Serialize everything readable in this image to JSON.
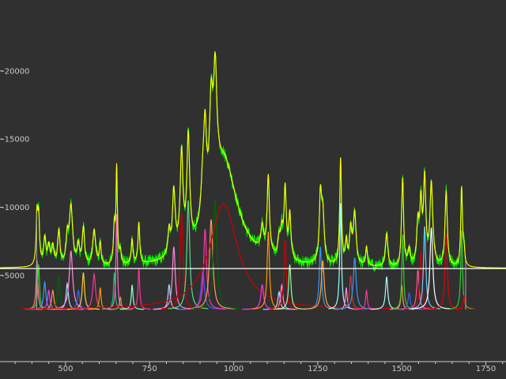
{
  "chart_data": {
    "type": "line",
    "title": "",
    "xlabel": "",
    "ylabel": "",
    "xlim": [
      305,
      1810
    ],
    "ylim": [
      -2600,
      25200
    ],
    "grid": false,
    "legend": "none",
    "x_ticks": [
      {
        "value": 500,
        "label": "500"
      },
      {
        "value": 750,
        "label": "750"
      },
      {
        "value": 1000,
        "label": "1000"
      },
      {
        "value": 1250,
        "label": "1250"
      },
      {
        "value": 1500,
        "label": "1500"
      },
      {
        "value": 1750,
        "label": "1750"
      }
    ],
    "y_ticks": [
      {
        "value": 5000,
        "label": "-5000"
      },
      {
        "value": 10000,
        "label": "-10000"
      },
      {
        "value": 15000,
        "label": "-15000"
      },
      {
        "value": 20000,
        "label": "-20000"
      }
    ],
    "baseline_level": 2500,
    "fit_offset": 5500,
    "data_range": [
      414,
      1690
    ],
    "series": [
      {
        "role": "measured",
        "color": "#00ff00",
        "noise": 350
      },
      {
        "role": "fit",
        "color": "#ffff00"
      },
      {
        "role": "offset",
        "color": "#ffffff",
        "value": 5500
      }
    ],
    "components": [
      {
        "x0": 415,
        "h": 3600,
        "w": 3,
        "color": "#ff7f7f"
      },
      {
        "x0": 420,
        "h": 3300,
        "w": 3,
        "color": "#33cc33"
      },
      {
        "x0": 438,
        "h": 2000,
        "w": 4,
        "color": "#3399ff"
      },
      {
        "x0": 450,
        "h": 1400,
        "w": 4,
        "color": "#ff33ff"
      },
      {
        "x0": 462,
        "h": 1400,
        "w": 4,
        "color": "#ff9933"
      },
      {
        "x0": 480,
        "h": 2500,
        "w": 4,
        "color": "#006600"
      },
      {
        "x0": 505,
        "h": 1900,
        "w": 4,
        "color": "#aaddff"
      },
      {
        "x0": 516,
        "h": 4300,
        "w": 6,
        "color": "#ff88dd"
      },
      {
        "x0": 538,
        "h": 1400,
        "w": 4,
        "color": "#3366ff"
      },
      {
        "x0": 553,
        "h": 2700,
        "w": 4,
        "color": "#ffcc33"
      },
      {
        "x0": 585,
        "h": 2600,
        "w": 5,
        "color": "#ff3399"
      },
      {
        "x0": 603,
        "h": 1600,
        "w": 3,
        "color": "#ff9900"
      },
      {
        "x0": 645,
        "h": 2700,
        "w": 3,
        "color": "#00cc66"
      },
      {
        "x0": 652,
        "h": 7000,
        "w": 2.5,
        "color": "#ff66cc"
      },
      {
        "x0": 663,
        "h": 900,
        "w": 3,
        "color": "#cc9966"
      },
      {
        "x0": 698,
        "h": 1800,
        "w": 3,
        "color": "#99ffcc"
      },
      {
        "x0": 718,
        "h": 3000,
        "w": 3,
        "color": "#ff3399"
      },
      {
        "x0": 808,
        "h": 1800,
        "w": 4,
        "color": "#aaddff"
      },
      {
        "x0": 822,
        "h": 4600,
        "w": 5,
        "color": "#ff88dd"
      },
      {
        "x0": 845,
        "h": 7100,
        "w": 5,
        "color": "#cc0000"
      },
      {
        "x0": 865,
        "h": 8000,
        "w": 5,
        "color": "#55dd88"
      },
      {
        "x0": 908,
        "h": 2700,
        "w": 6,
        "color": "#5555ff"
      },
      {
        "x0": 915,
        "h": 5900,
        "w": 5,
        "color": "#ff33aa"
      },
      {
        "x0": 933,
        "h": 6600,
        "w": 6,
        "color": "#ff9966"
      },
      {
        "x0": 945,
        "h": 8000,
        "w": 6,
        "color": "#006600"
      },
      {
        "x0": 970,
        "h": 7800,
        "w": 50,
        "color": "#cc0000"
      },
      {
        "x0": 1085,
        "h": 1800,
        "w": 5,
        "color": "#ff33ff"
      },
      {
        "x0": 1103,
        "h": 5700,
        "w": 4,
        "color": "#ff9900"
      },
      {
        "x0": 1135,
        "h": 1300,
        "w": 4,
        "color": "#aaddff"
      },
      {
        "x0": 1143,
        "h": 1800,
        "w": 4,
        "color": "#ff88dd"
      },
      {
        "x0": 1153,
        "h": 5100,
        "w": 4,
        "color": "#cc0000"
      },
      {
        "x0": 1167,
        "h": 3300,
        "w": 4,
        "color": "#99ff99"
      },
      {
        "x0": 1258,
        "h": 4600,
        "w": 4,
        "color": "#3399ff"
      },
      {
        "x0": 1265,
        "h": 3600,
        "w": 5,
        "color": "#ffaa33"
      },
      {
        "x0": 1318,
        "h": 7800,
        "w": 3,
        "color": "#99ffff"
      },
      {
        "x0": 1335,
        "h": 1600,
        "w": 3,
        "color": "#ff88dd"
      },
      {
        "x0": 1348,
        "h": 2500,
        "w": 4,
        "color": "#cc3333"
      },
      {
        "x0": 1360,
        "h": 3800,
        "w": 5,
        "color": "#3399ff"
      },
      {
        "x0": 1395,
        "h": 1400,
        "w": 3,
        "color": "#ff3399"
      },
      {
        "x0": 1455,
        "h": 2400,
        "w": 4,
        "color": "#aaffff"
      },
      {
        "x0": 1500,
        "h": 1800,
        "w": 3,
        "color": "#ff9933"
      },
      {
        "x0": 1503,
        "h": 5500,
        "w": 3,
        "color": "#33cc33"
      },
      {
        "x0": 1522,
        "h": 1200,
        "w": 4,
        "color": "#3366ff"
      },
      {
        "x0": 1548,
        "h": 2900,
        "w": 4,
        "color": "#ff5599"
      },
      {
        "x0": 1557,
        "h": 4300,
        "w": 4,
        "color": "#cc0000"
      },
      {
        "x0": 1568,
        "h": 6100,
        "w": 4,
        "color": "#66ccff"
      },
      {
        "x0": 1588,
        "h": 6000,
        "w": 5,
        "color": "#ffffff"
      },
      {
        "x0": 1632,
        "h": 5500,
        "w": 4,
        "color": "#dd0000"
      },
      {
        "x0": 1678,
        "h": 5800,
        "w": 3,
        "color": "#33cc33"
      },
      {
        "x0": 1685,
        "h": 1000,
        "w": 3,
        "color": "#cc0000"
      }
    ]
  }
}
